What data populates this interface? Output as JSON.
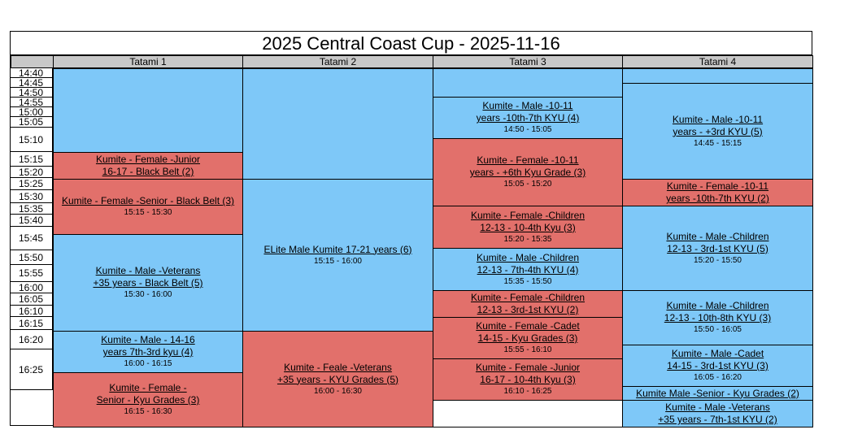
{
  "title": "2025 Central Coast Cup - 2025-11-16",
  "headers": [
    "Tatami 1",
    "Tatami 2",
    "Tatami 3",
    "Tatami 4"
  ],
  "times": [
    "14:40",
    "14:45",
    "14:50",
    "14:55",
    "15:00",
    "15:05",
    "15:10",
    "15:15",
    "15:20",
    "15:25",
    "15:30",
    "15:35",
    "15:40",
    "15:45",
    "15:50",
    "15:55",
    "16:00",
    "16:05",
    "16:10",
    "16:15",
    "16:20",
    "16:25"
  ],
  "events": [
    {
      "id": "t1-blank",
      "lines": [],
      "time": ""
    },
    {
      "id": "t1-e1",
      "lines": [
        "Kumite - Female -Junior",
        "16-17 - Black Belt (2)"
      ],
      "time": ""
    },
    {
      "id": "t1-e2",
      "lines": [
        "Kumite - Female -Senior - Black Belt (3)"
      ],
      "time": "15:15 - 15:30"
    },
    {
      "id": "t1-e3",
      "lines": [
        "Kumite - Male -Veterans",
        "+35 years - Black Belt (5)"
      ],
      "time": "15:30 - 16:00"
    },
    {
      "id": "t1-e4",
      "lines": [
        "Kumite - Male - 14-16",
        "years 7th-3rd kyu (4)"
      ],
      "time": "16:00 - 16:15"
    },
    {
      "id": "t1-e5",
      "lines": [
        "Kumite - Female -",
        "Senior - Kyu Grades (3)"
      ],
      "time": "16:15 - 16:30"
    },
    {
      "id": "t2-blank",
      "lines": [],
      "time": ""
    },
    {
      "id": "t2-e1",
      "lines": [
        "ELite Male Kumite 17-21 years (6)"
      ],
      "time": "15:15 - 16:00"
    },
    {
      "id": "t2-e2",
      "lines": [
        "Kumite - Feale -Veterans",
        "+35 years - KYU Grades (5)"
      ],
      "time": "16:00 - 16:30"
    },
    {
      "id": "t3-blank",
      "lines": [],
      "time": ""
    },
    {
      "id": "t3-e1",
      "lines": [
        "Kumite - Male -10-11",
        "years -10th-7th KYU (4)"
      ],
      "time": "14:50 - 15:05"
    },
    {
      "id": "t3-e2",
      "lines": [
        "Kumite - Female -10-11",
        "years - +6th Kyu Grade (3)"
      ],
      "time": "15:05 - 15:20"
    },
    {
      "id": "t3-e3",
      "lines": [
        "Kumite - Female -Children",
        "12-13 - 10-4th Kyu (3)"
      ],
      "time": "15:20 - 15:35"
    },
    {
      "id": "t3-e4",
      "lines": [
        "Kumite - Male -Children",
        "12-13 - 7th-4th KYU (4)"
      ],
      "time": "15:35 - 15:50"
    },
    {
      "id": "t3-e5",
      "lines": [
        "Kumite - Female -Children",
        "12-13 - 3rd-1st KYU (2)"
      ],
      "time": ""
    },
    {
      "id": "t3-e6",
      "lines": [
        "Kumite - Female -Cadet",
        "14-15 - Kyu Grades (3)"
      ],
      "time": "15:55 - 16:10"
    },
    {
      "id": "t3-e7",
      "lines": [
        "Kumite - Female -Junior",
        "16-17 - 10-4th Kyu (3)"
      ],
      "time": "16:10 - 16:25"
    },
    {
      "id": "t3-empty",
      "lines": [],
      "time": ""
    },
    {
      "id": "t4-blank",
      "lines": [],
      "time": ""
    },
    {
      "id": "t4-e1",
      "lines": [
        "Kumite - Male -10-11",
        "years - +3rd KYU (5)"
      ],
      "time": "14:45 - 15:15"
    },
    {
      "id": "t4-e2",
      "lines": [
        "Kumite - Female -10-11",
        "years -10th-7th KYU (2)"
      ],
      "time": ""
    },
    {
      "id": "t4-e3",
      "lines": [
        "Kumite - Male -Children",
        "12-13 - 3rd-1st KYU (5)"
      ],
      "time": "15:20 - 15:50"
    },
    {
      "id": "t4-e4",
      "lines": [
        "Kumite - Male -Children",
        "12-13 - 10th-8th KYU (3)"
      ],
      "time": "15:50 - 16:05"
    },
    {
      "id": "t4-e5",
      "lines": [
        "Kumite - Male -Cadet",
        "14-15 - 3rd-1st KYU (3)"
      ],
      "time": "16:05 - 16:20"
    },
    {
      "id": "t4-e6",
      "lines": [
        "Kumite Male -Senior - Kyu Grades (2)"
      ],
      "time": ""
    },
    {
      "id": "t4-e7",
      "lines": [
        "Kumite - Male -Veterans",
        "+35 years - 7th-1st KYU (2)"
      ],
      "time": ""
    }
  ],
  "colors": {
    "blue": "#7ec8f8",
    "red": "#e2706b",
    "header": "#c8c8c8"
  }
}
